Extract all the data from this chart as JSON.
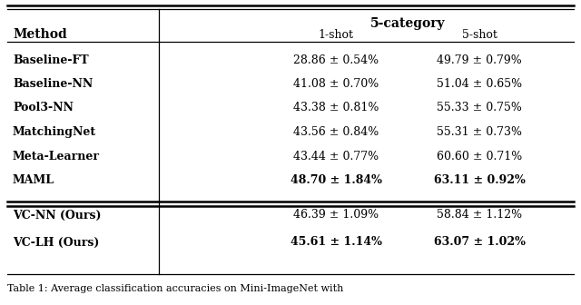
{
  "title": "5-category",
  "col_header_method": "Method",
  "col_header_1shot": "1-shot",
  "col_header_5shot": "5-shot",
  "group1": [
    [
      "Baseline-FT",
      "28.86 ± 0.54%",
      "49.79 ± 0.79%"
    ],
    [
      "Baseline-NN",
      "41.08 ± 0.70%",
      "51.04 ± 0.65%"
    ],
    [
      "Pool3-NN",
      "43.38 ± 0.81%",
      "55.33 ± 0.75%"
    ],
    [
      "MatchingNet",
      "43.56 ± 0.84%",
      "55.31 ± 0.73%"
    ],
    [
      "Meta-Learner",
      "43.44 ± 0.77%",
      "60.60 ± 0.71%"
    ],
    [
      "MAML",
      "48.70 ± 1.84%",
      "63.11 ± 0.92%"
    ]
  ],
  "group1_bold_data": [
    false,
    false,
    false,
    false,
    false,
    true
  ],
  "group2": [
    [
      "VC-NN (Ours)",
      "46.39 ± 1.09%",
      "58.84 ± 1.12%"
    ],
    [
      "VC-LH (Ours)",
      "45.61 ± 1.14%",
      "63.07 ± 1.02%"
    ]
  ],
  "group2_bold_data": [
    false,
    true
  ],
  "caption": "Table 1: Average classification accuracies on Mini-ImageNet with",
  "bg_color": "#ffffff",
  "text_color": "#000000",
  "font_size": 9.0,
  "header_font_size": 10.0,
  "caption_font_size": 8.0
}
